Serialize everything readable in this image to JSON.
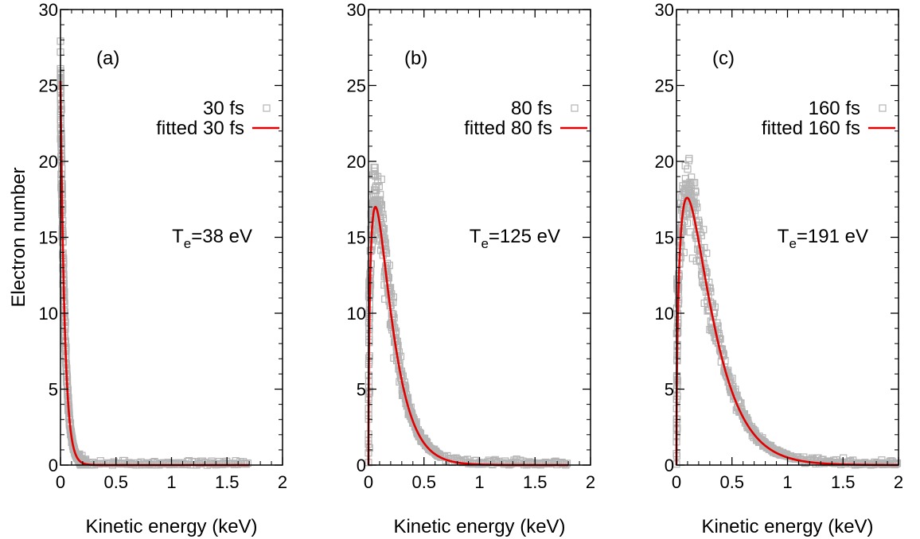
{
  "chart_data": [
    {
      "type": "scatter",
      "panel_label": "(a)",
      "xlabel": "Kinetic energy (keV)",
      "ylabel": "Electron number",
      "xlim": [
        0,
        2
      ],
      "ylim": [
        0,
        30
      ],
      "xticks": [
        "0",
        "0.5",
        "1",
        "1.5",
        "2"
      ],
      "yticks": [
        "0",
        "5",
        "10",
        "15",
        "20",
        "25",
        "30"
      ],
      "series": [
        {
          "name": "30 fs",
          "kind": "scatter-square",
          "color": "#b4b4b4",
          "model": {
            "Te_keV": 0.038,
            "peak": 25.5,
            "x_max": 1.7
          }
        },
        {
          "name": "fitted 30 fs",
          "kind": "line",
          "color": "#e00000",
          "model": {
            "Te_keV": 0.038,
            "peak": 25.3,
            "x_max": 1.7
          }
        }
      ],
      "annotation": {
        "base": "T",
        "sub": "e",
        "rest": "=38 eV"
      }
    },
    {
      "type": "scatter",
      "panel_label": "(b)",
      "xlabel": "Kinetic energy (keV)",
      "ylabel": "",
      "xlim": [
        0,
        2
      ],
      "ylim": [
        0,
        30
      ],
      "xticks": [
        "0",
        "0.5",
        "1",
        "1.5",
        "2"
      ],
      "yticks": [
        "0",
        "5",
        "10",
        "15",
        "20",
        "25",
        "30"
      ],
      "series": [
        {
          "name": "80 fs",
          "kind": "scatter-square",
          "color": "#b4b4b4",
          "model": {
            "Te_keV": 0.125,
            "peak": 17.6,
            "x_max": 1.8
          }
        },
        {
          "name": "fitted 80 fs",
          "kind": "line",
          "color": "#e00000",
          "model": {
            "Te_keV": 0.125,
            "peak": 17.0,
            "x_max": 1.8
          }
        }
      ],
      "annotation": {
        "base": "T",
        "sub": "e",
        "rest": "=125 eV"
      }
    },
    {
      "type": "scatter",
      "panel_label": "(c)",
      "xlabel": "Kinetic energy (keV)",
      "ylabel": "",
      "xlim": [
        0,
        2
      ],
      "ylim": [
        0,
        30
      ],
      "xticks": [
        "0",
        "0.5",
        "1",
        "1.5",
        "2"
      ],
      "yticks": [
        "0",
        "5",
        "10",
        "15",
        "20",
        "25",
        "30"
      ],
      "series": [
        {
          "name": "160 fs",
          "kind": "scatter-square",
          "color": "#b4b4b4",
          "model": {
            "Te_keV": 0.191,
            "peak": 18.0,
            "x_max": 2.0
          }
        },
        {
          "name": "fitted 160 fs",
          "kind": "line",
          "color": "#e00000",
          "model": {
            "Te_keV": 0.191,
            "peak": 17.6,
            "x_max": 2.0
          }
        }
      ],
      "annotation": {
        "base": "T",
        "sub": "e",
        "rest": "=191 eV"
      }
    }
  ]
}
